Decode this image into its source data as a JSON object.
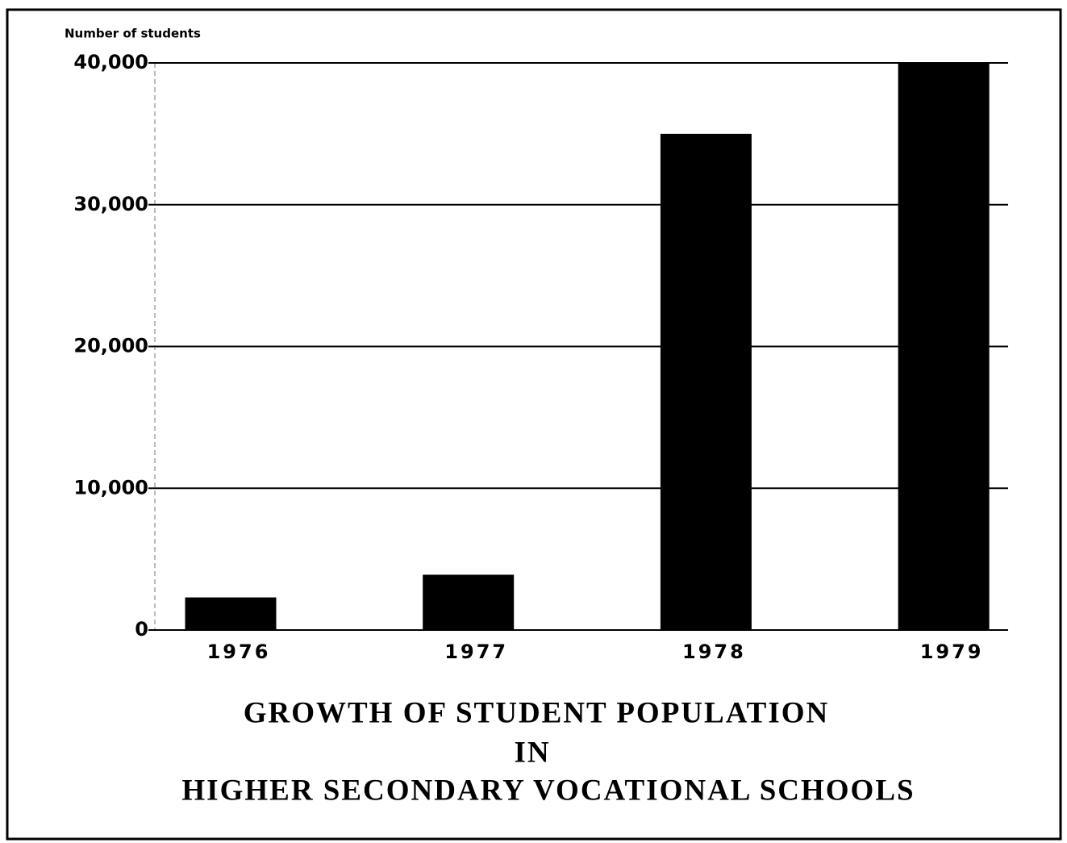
{
  "chart_data": {
    "type": "bar",
    "title": [
      "GROWTH OF STUDENT POPULATION",
      "IN",
      "HIGHER SECONDARY VOCATIONAL SCHOOLS"
    ],
    "y_label": "Number of students",
    "categories": [
      "1976",
      "1977",
      "1978",
      "1979"
    ],
    "values": [
      2300,
      3900,
      35000,
      40000
    ],
    "color": "#000000",
    "ylim": [
      0,
      40000
    ],
    "yticks": [
      0,
      {
        "value": 10000,
        "label": "10,000"
      },
      {
        "value": 20000,
        "label": "20,000"
      },
      {
        "value": 30000,
        "label": "30,000"
      },
      {
        "value": 40000,
        "label": "40,000"
      }
    ],
    "grid": true
  }
}
